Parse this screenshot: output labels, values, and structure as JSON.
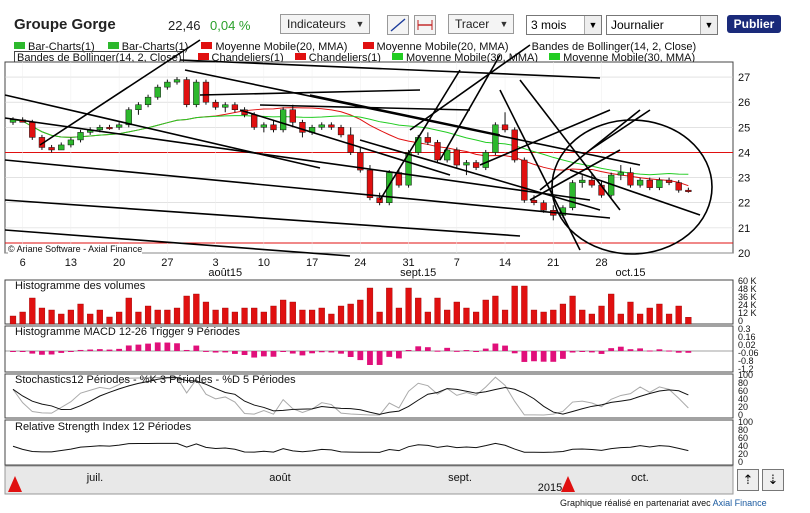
{
  "header": {
    "title": "Groupe Gorge",
    "price": "22,46",
    "change": "0,04 %",
    "indicators_label": "Indicateurs",
    "draw_label": "Tracer",
    "period_value": "3 mois",
    "interval_value": "Journalier",
    "publish_label": "Publier"
  },
  "colors": {
    "up": "#2db82d",
    "down": "#e01010",
    "ma20": "#e01010",
    "ma30": "#22cc22",
    "volume": "#e01010",
    "macd": "#e0107a",
    "grid": "#d0d0d0"
  },
  "legend": {
    "row1": [
      "Bar-Charts(1)",
      "Bar-Charts(1)",
      "Moyenne Mobile(20, MMA)",
      "Moyenne Mobile(20, MMA)",
      "Bandes de Bollinger(14, 2, Close)"
    ],
    "row2": [
      "Bandes de Bollinger(14, 2, Close)",
      "Chandeliers(1)",
      "Chandeliers(1)",
      "Moyenne Mobile(30, MMA)",
      "Moyenne Mobile(30, MMA)"
    ]
  },
  "copyright": "© Ariane Software - Axial Finance",
  "panels": {
    "volume_title": "Histogramme des volumes",
    "macd_title": "Histogramme MACD 12-26   Trigger 9 Périodes",
    "stoch_title": "Stochastics12 Périodes  -  %K 3 Périodes  -  %D 5 Périodes",
    "rsi_title": "Relative Strength Index 12 Périodes"
  },
  "footer": {
    "text": "Graphique réalisé en partenariat avec ",
    "brand": "Axial Finance"
  },
  "nav": {
    "year": "2015",
    "months": [
      "juil.",
      "août",
      "sept.",
      "oct."
    ]
  },
  "chart_data": [
    {
      "type": "candlestick",
      "title": "Groupe Gorge",
      "y_ticks": [
        20,
        21,
        22,
        23,
        24,
        25,
        26,
        27
      ],
      "ylim": [
        20,
        27.6
      ],
      "x_ticks": [
        "6",
        "13",
        "20",
        "27",
        "3",
        "10",
        "17",
        "24",
        "31",
        "7",
        "14",
        "21",
        "28"
      ],
      "x_month_labels": [
        "août15",
        "sept.15",
        "oct.15"
      ],
      "ohlc": [
        [
          25.2,
          25.4,
          25.1,
          25.3
        ],
        [
          25.3,
          25.4,
          25.2,
          25.2
        ],
        [
          25.2,
          25.3,
          24.5,
          24.6
        ],
        [
          24.6,
          24.7,
          24.1,
          24.2
        ],
        [
          24.2,
          24.3,
          24.0,
          24.1
        ],
        [
          24.1,
          24.4,
          24.1,
          24.3
        ],
        [
          24.3,
          24.6,
          24.2,
          24.5
        ],
        [
          24.5,
          24.9,
          24.4,
          24.8
        ],
        [
          24.8,
          25.0,
          24.7,
          24.9
        ],
        [
          24.9,
          25.1,
          24.8,
          25.0
        ],
        [
          25.0,
          25.1,
          24.9,
          24.95
        ],
        [
          25.0,
          25.2,
          24.9,
          25.1
        ],
        [
          25.1,
          25.8,
          25.0,
          25.7
        ],
        [
          25.7,
          26.0,
          25.5,
          25.9
        ],
        [
          25.9,
          26.3,
          25.8,
          26.2
        ],
        [
          26.2,
          26.7,
          26.1,
          26.6
        ],
        [
          26.6,
          26.9,
          26.5,
          26.8
        ],
        [
          26.8,
          27.0,
          26.7,
          26.9
        ],
        [
          26.9,
          27.0,
          25.8,
          25.9
        ],
        [
          25.9,
          26.9,
          25.8,
          26.8
        ],
        [
          26.8,
          26.9,
          25.9,
          26.0
        ],
        [
          26.0,
          26.1,
          25.7,
          25.8
        ],
        [
          25.8,
          26.0,
          25.6,
          25.9
        ],
        [
          25.9,
          26.0,
          25.6,
          25.7
        ],
        [
          25.7,
          25.8,
          25.4,
          25.5
        ],
        [
          25.5,
          25.6,
          24.9,
          25.0
        ],
        [
          25.0,
          25.2,
          24.8,
          25.1
        ],
        [
          25.1,
          25.3,
          24.8,
          24.9
        ],
        [
          24.9,
          25.8,
          24.8,
          25.7
        ],
        [
          25.7,
          25.9,
          25.0,
          25.2
        ],
        [
          25.2,
          25.3,
          24.6,
          24.8
        ],
        [
          24.8,
          25.1,
          24.7,
          25.0
        ],
        [
          25.0,
          25.2,
          24.9,
          25.1
        ],
        [
          25.1,
          25.2,
          24.9,
          25.0
        ],
        [
          25.0,
          25.1,
          24.6,
          24.7
        ],
        [
          24.7,
          25.0,
          23.9,
          24.0
        ],
        [
          24.0,
          24.2,
          23.2,
          23.3
        ],
        [
          23.3,
          23.5,
          22.1,
          22.2
        ],
        [
          22.2,
          22.4,
          21.9,
          22.0
        ],
        [
          22.0,
          23.3,
          21.9,
          23.2
        ],
        [
          23.2,
          23.3,
          22.6,
          22.7
        ],
        [
          22.7,
          24.1,
          22.6,
          24.0
        ],
        [
          24.0,
          24.7,
          23.9,
          24.6
        ],
        [
          24.6,
          24.8,
          24.3,
          24.4
        ],
        [
          24.4,
          24.5,
          23.6,
          23.7
        ],
        [
          23.7,
          24.2,
          23.6,
          24.1
        ],
        [
          24.1,
          24.2,
          23.4,
          23.5
        ],
        [
          23.5,
          23.7,
          23.1,
          23.6
        ],
        [
          23.6,
          23.7,
          23.3,
          23.4
        ],
        [
          23.4,
          24.1,
          23.3,
          24.0
        ],
        [
          24.0,
          25.2,
          23.9,
          25.1
        ],
        [
          25.1,
          25.6,
          24.8,
          24.9
        ],
        [
          24.9,
          25.0,
          23.6,
          23.7
        ],
        [
          23.7,
          23.8,
          22.0,
          22.1
        ],
        [
          22.1,
          22.3,
          21.9,
          22.0
        ],
        [
          22.0,
          22.1,
          21.6,
          21.7
        ],
        [
          21.7,
          21.9,
          21.3,
          21.5
        ],
        [
          21.5,
          21.9,
          21.4,
          21.8
        ],
        [
          21.8,
          22.9,
          21.7,
          22.8
        ],
        [
          22.8,
          23.1,
          22.6,
          22.9
        ],
        [
          22.9,
          23.2,
          22.6,
          22.7
        ],
        [
          22.7,
          22.9,
          22.2,
          22.3
        ],
        [
          22.3,
          23.2,
          22.2,
          23.1
        ],
        [
          23.1,
          23.5,
          22.9,
          23.2
        ],
        [
          23.2,
          23.4,
          22.6,
          22.7
        ],
        [
          22.7,
          23.0,
          22.6,
          22.9
        ],
        [
          22.9,
          23.0,
          22.5,
          22.6
        ],
        [
          22.6,
          23.0,
          22.5,
          22.9
        ],
        [
          22.9,
          23.0,
          22.7,
          22.8
        ],
        [
          22.8,
          22.9,
          22.4,
          22.5
        ],
        [
          22.5,
          22.6,
          22.4,
          22.46
        ]
      ]
    },
    {
      "type": "bar",
      "title": "Histogramme des volumes",
      "y_ticks": [
        "0",
        "12 K",
        "24 K",
        "36 K",
        "48 K",
        "60 K"
      ]
    },
    {
      "type": "bar",
      "title": "Histogramme MACD 12-26   Trigger 9 Périodes",
      "y_ticks": [
        "0.3",
        "0.16",
        "0.02",
        "-0.06",
        "-0.8",
        "-1.2"
      ]
    },
    {
      "type": "line",
      "title": "Stochastics12 Périodes  -  %K 3 Périodes  -  %D 5 Périodes",
      "y_ticks": [
        "0",
        "20",
        "40",
        "60",
        "80",
        "100"
      ]
    },
    {
      "type": "line",
      "title": "Relative Strength Index 12 Périodes",
      "y_ticks": [
        "0",
        "20",
        "40",
        "60",
        "80",
        "100"
      ]
    }
  ]
}
